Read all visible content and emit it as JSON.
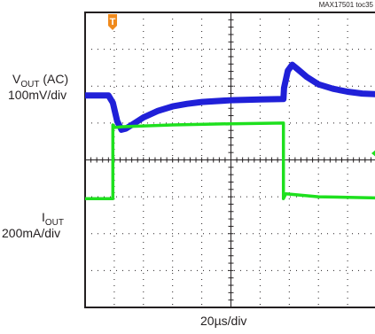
{
  "figure_id": "MAX17501 toc35",
  "trigger_marker": "T",
  "channels": [
    {
      "name_main": "V",
      "name_sub": "OUT",
      "name_suffix": " (AC)",
      "scale": "100mV/div",
      "color": "#2020d8"
    },
    {
      "name_main": "I",
      "name_sub": "OUT",
      "name_suffix": "",
      "scale": "200mA/div",
      "color": "#1ee01e"
    }
  ],
  "timebase": "20µs/div",
  "chart_data": {
    "type": "line",
    "xlabel": "20µs/div",
    "grid": true,
    "grid_divisions": {
      "x": 10,
      "y": 8
    },
    "xlim": [
      0,
      10
    ],
    "ylim": [
      0,
      8
    ],
    "series": [
      {
        "name": "VOUT (AC)",
        "color": "#2020d8",
        "scale": "100mV/div",
        "x": [
          0,
          0.8,
          0.95,
          1.1,
          1.25,
          1.4,
          1.7,
          2.0,
          2.5,
          3.0,
          3.5,
          4.0,
          5.0,
          6.0,
          6.8,
          6.82,
          6.95,
          7.1,
          7.3,
          7.6,
          8.0,
          8.5,
          9.0,
          9.5,
          10.0
        ],
        "y": [
          5.75,
          5.75,
          5.55,
          5.05,
          4.82,
          4.85,
          5.0,
          5.15,
          5.33,
          5.45,
          5.52,
          5.57,
          5.62,
          5.64,
          5.65,
          5.95,
          6.42,
          6.58,
          6.45,
          6.25,
          6.05,
          5.93,
          5.85,
          5.8,
          5.78
        ]
      },
      {
        "name": "IOUT",
        "color": "#1ee01e",
        "scale": "200mA/div",
        "x": [
          0,
          0.95,
          0.95,
          1.02,
          1.3,
          3.0,
          5.0,
          6.8,
          6.8,
          6.88,
          8.0,
          10.0
        ],
        "y": [
          2.95,
          2.95,
          4.95,
          4.88,
          4.9,
          4.95,
          4.98,
          5.0,
          2.95,
          3.08,
          3.0,
          2.97
        ]
      }
    ]
  }
}
